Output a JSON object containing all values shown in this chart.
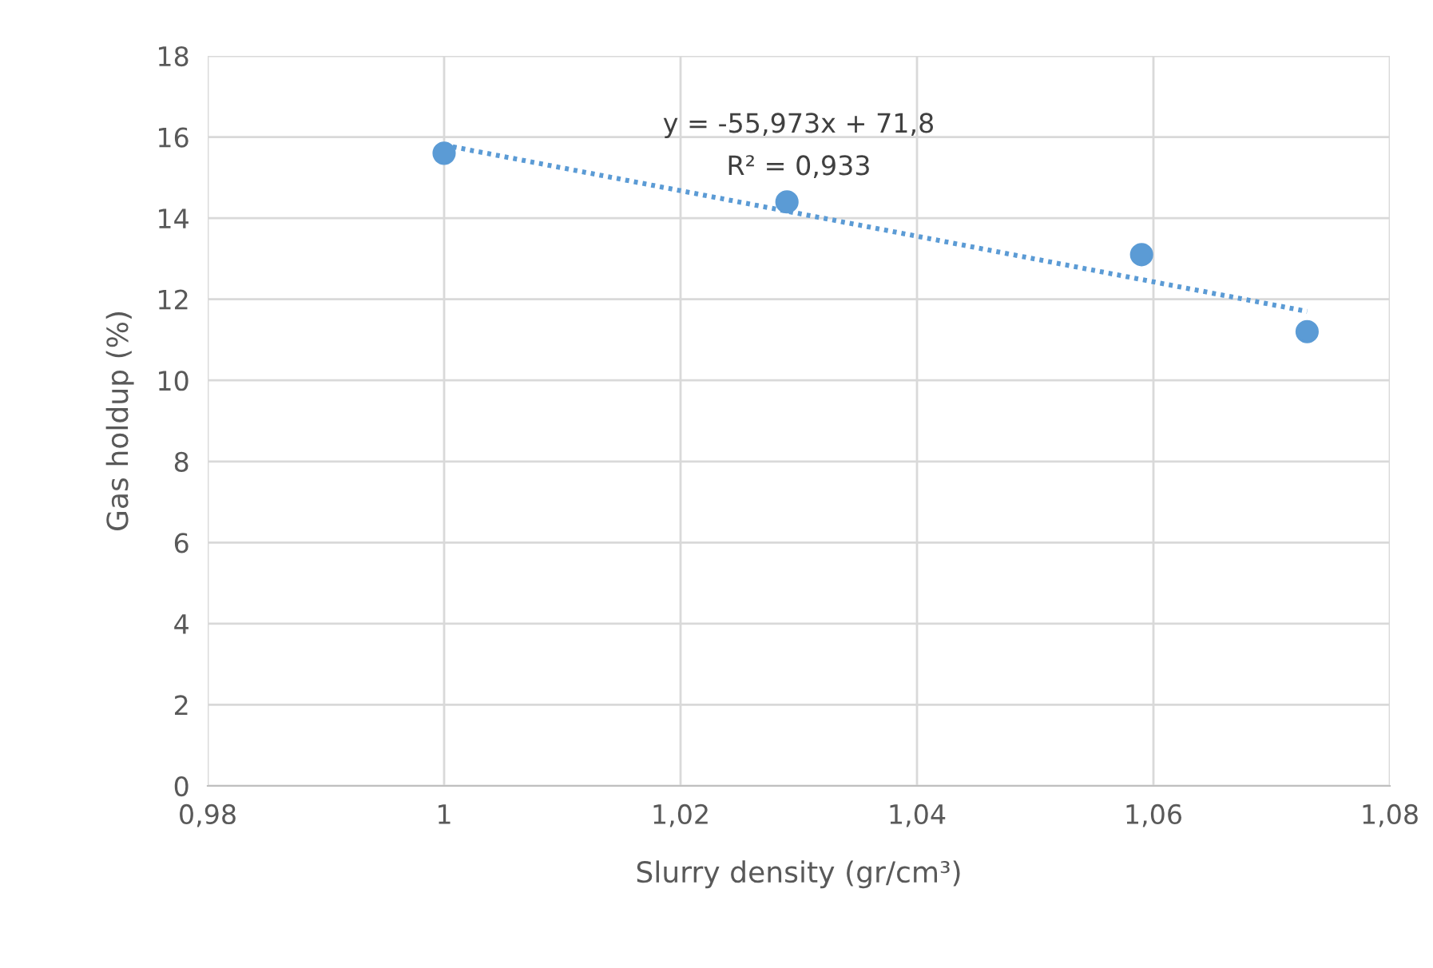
{
  "chart_data": {
    "type": "scatter",
    "xlabel": "Slurry density (gr/cm³)",
    "ylabel": "Gas holdup (%)",
    "xlim": [
      0.98,
      1.08
    ],
    "ylim": [
      0,
      18
    ],
    "xticks": [
      {
        "value": 0.98,
        "label": "0,98"
      },
      1,
      {
        "value": 1.02,
        "label": "1,02"
      },
      {
        "value": 1.04,
        "label": "1,04"
      },
      {
        "value": 1.06,
        "label": "1,06"
      },
      {
        "value": 1.08,
        "label": "1,08"
      }
    ],
    "yticks": [
      0,
      2,
      4,
      6,
      8,
      10,
      12,
      14,
      16,
      18
    ],
    "grid": true,
    "series": [
      {
        "marker": "circle",
        "color": "#5b9bd5",
        "x": [
          1,
          1.029,
          1.059,
          1.073
        ],
        "values": [
          15.6,
          14.4,
          13.1,
          11.2
        ]
      },
      {
        "type": "line",
        "marker": "none",
        "color": "#5b9bd5",
        "line_style": "dotted",
        "x": [
          1,
          1.073
        ],
        "values": [
          15.8,
          11.7
        ]
      }
    ],
    "annotations": [
      "y = -55,973x + 71,8",
      "R² = 0,933"
    ]
  }
}
